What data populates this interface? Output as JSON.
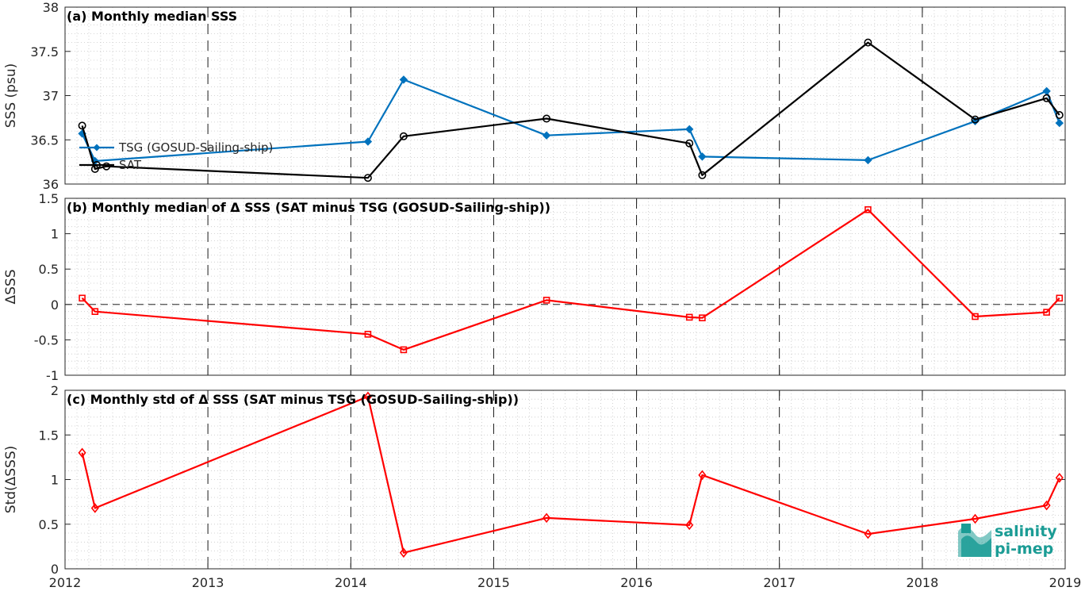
{
  "chart_data": [
    {
      "type": "line",
      "title": "(a) Monthly median SSS",
      "ylabel": "SSS (psu)",
      "xlim": [
        2012,
        2019
      ],
      "ylim": [
        36,
        38
      ],
      "yticks": [
        36,
        36.5,
        37,
        37.5,
        38
      ],
      "ytick_labels": [
        "36",
        "36.5",
        "37",
        "37.5",
        "38"
      ],
      "grid": "minor dotted",
      "legend_position": "left",
      "series": [
        {
          "name": "TSG (GOSUD-Sailing-ship)",
          "color": "#0072BD",
          "marker": "filled-diamond",
          "x": [
            2012.12,
            2012.21,
            2014.12,
            2014.37,
            2015.37,
            2016.37,
            2016.46,
            2017.62,
            2018.37,
            2018.87,
            2018.96
          ],
          "y": [
            36.57,
            36.26,
            36.48,
            37.18,
            36.55,
            36.62,
            36.31,
            36.27,
            36.71,
            37.05,
            36.69
          ]
        },
        {
          "name": "SAT",
          "color": "#000000",
          "marker": "open-circle",
          "x": [
            2012.12,
            2012.21,
            2012.29,
            2014.12,
            2014.37,
            2015.37,
            2016.37,
            2016.46,
            2017.62,
            2018.37,
            2018.87,
            2018.96
          ],
          "y": [
            36.66,
            36.17,
            36.2,
            36.07,
            36.54,
            36.74,
            36.46,
            36.1,
            37.6,
            36.73,
            36.97,
            36.78
          ]
        }
      ]
    },
    {
      "type": "line",
      "title": "(b) Monthly median of Δ SSS (SAT minus TSG (GOSUD-Sailing-ship))",
      "ylabel": "ΔSSS",
      "xlim": [
        2012,
        2019
      ],
      "ylim": [
        -1,
        1.5
      ],
      "yticks": [
        -1,
        -0.5,
        0,
        0.5,
        1,
        1.5
      ],
      "ytick_labels": [
        "-1",
        "-0.5",
        "0",
        "0.5",
        "1",
        "1.5"
      ],
      "grid": "minor dotted",
      "reference_line": 0,
      "series": [
        {
          "color": "#FF0000",
          "marker": "open-square",
          "x": [
            2012.12,
            2012.21,
            2014.12,
            2014.37,
            2015.37,
            2016.37,
            2016.46,
            2017.62,
            2018.37,
            2018.87,
            2018.96
          ],
          "y": [
            0.09,
            -0.1,
            -0.42,
            -0.64,
            0.06,
            -0.18,
            -0.19,
            1.34,
            -0.17,
            -0.11,
            0.09
          ]
        }
      ]
    },
    {
      "type": "line",
      "title": "(c) Monthly std of Δ SSS (SAT minus TSG (GOSUD-Sailing-ship))",
      "ylabel": "Std(ΔSSS)",
      "xlabel": "",
      "xlim": [
        2012,
        2019
      ],
      "ylim": [
        0,
        2
      ],
      "yticks": [
        0,
        0.5,
        1,
        1.5,
        2
      ],
      "ytick_labels": [
        "0",
        "0.5",
        "1",
        "1.5",
        "2"
      ],
      "grid": "minor dotted",
      "series": [
        {
          "color": "#FF0000",
          "marker": "open-diamond",
          "x": [
            2012.12,
            2012.21,
            2014.12,
            2014.37,
            2015.37,
            2016.37,
            2016.46,
            2017.62,
            2018.37,
            2018.87,
            2018.96
          ],
          "y": [
            1.3,
            0.68,
            1.93,
            0.18,
            0.57,
            0.49,
            1.05,
            0.39,
            0.56,
            0.71,
            1.02
          ]
        }
      ]
    }
  ],
  "x_ticks": [
    2012,
    2013,
    2014,
    2015,
    2016,
    2017,
    2018,
    2019
  ],
  "x_tick_labels": [
    "2012",
    "2013",
    "2014",
    "2015",
    "2016",
    "2017",
    "2018",
    "2019"
  ],
  "year_divider_x": [
    2013,
    2014,
    2015,
    2016,
    2017,
    2018
  ],
  "logo": {
    "line1": "salinity",
    "line2": "pi-mep",
    "color": "#1b9c95"
  }
}
